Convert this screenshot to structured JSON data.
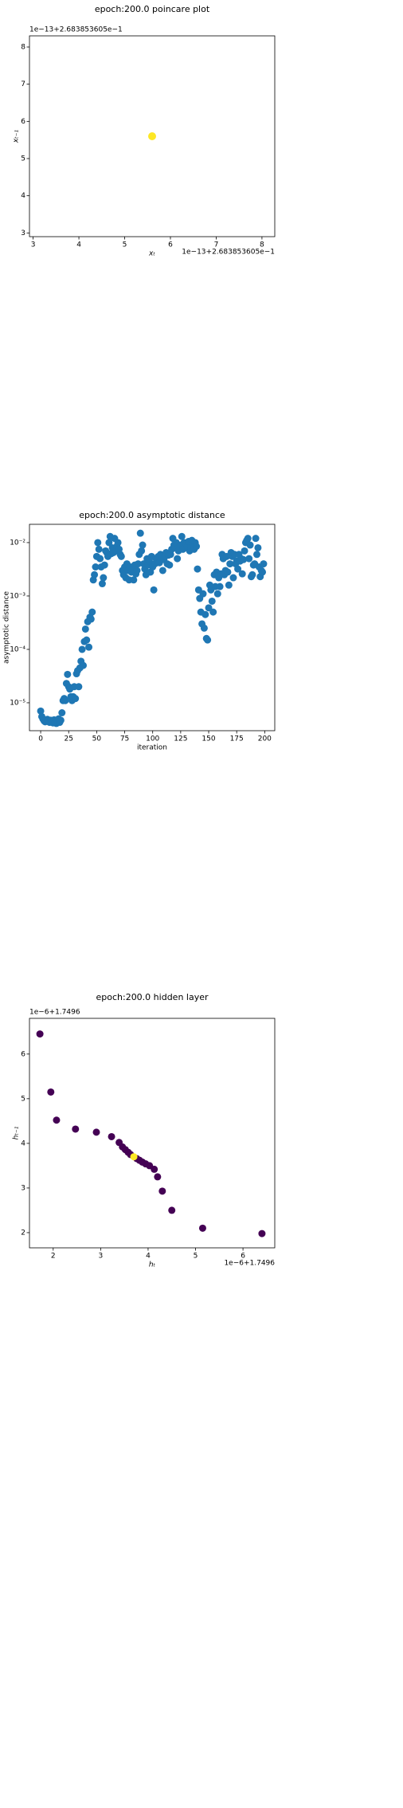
{
  "chart_data": [
    {
      "type": "scatter",
      "title": "epoch:200.0 poincare plot",
      "xlabel": "xₜ",
      "ylabel": "xₜ₋₁",
      "x_offset": "1e−13+2.683853605e−1",
      "y_offset": "1e−13+2.683853605e−1",
      "x": [
        5.6
      ],
      "y": [
        5.6
      ],
      "color": "#fde725",
      "xlim": [
        2.92,
        8.28
      ],
      "ylim": [
        2.9,
        8.3
      ],
      "xticks": [
        3,
        4,
        5,
        6,
        7,
        8
      ],
      "yticks": [
        3,
        4,
        5,
        6,
        7,
        8
      ]
    },
    {
      "type": "scatter",
      "title": "epoch:200.0 asymptotic distance",
      "xlabel": "iteration",
      "ylabel": "asymptotic distance",
      "yscale": "log",
      "color": "#1f77b4",
      "x": [
        0,
        1,
        2,
        3,
        4,
        5,
        6,
        7,
        8,
        9,
        10,
        11,
        12,
        13,
        14,
        15,
        16,
        17,
        18,
        19,
        20,
        21,
        22,
        23,
        24,
        25,
        26,
        27,
        28,
        29,
        30,
        31,
        32,
        33,
        34,
        35,
        36,
        37,
        38,
        39,
        40,
        41,
        42,
        43,
        44,
        45,
        46,
        47,
        48,
        49,
        50,
        51,
        52,
        53,
        54,
        55,
        56,
        57,
        58,
        59,
        60,
        61,
        62,
        63,
        64,
        65,
        66,
        67,
        68,
        69,
        70,
        71,
        72,
        73,
        74,
        75,
        76,
        77,
        78,
        79,
        80,
        81,
        82,
        83,
        84,
        85,
        86,
        87,
        88,
        89,
        90,
        91,
        92,
        93,
        94,
        95,
        96,
        97,
        98,
        99,
        100,
        101,
        102,
        103,
        104,
        105,
        106,
        107,
        108,
        109,
        110,
        111,
        112,
        113,
        114,
        115,
        116,
        117,
        118,
        119,
        120,
        121,
        122,
        123,
        124,
        125,
        126,
        127,
        128,
        129,
        130,
        131,
        132,
        133,
        134,
        135,
        136,
        137,
        138,
        139,
        140,
        141,
        142,
        143,
        144,
        145,
        146,
        147,
        148,
        149,
        150,
        151,
        152,
        153,
        154,
        155,
        156,
        157,
        158,
        159,
        160,
        161,
        162,
        163,
        164,
        165,
        166,
        167,
        168,
        169,
        170,
        171,
        172,
        173,
        174,
        175,
        176,
        177,
        178,
        179,
        180,
        181,
        182,
        183,
        184,
        185,
        186,
        187,
        188,
        189,
        190,
        191,
        192,
        193,
        194,
        195,
        196,
        197,
        198,
        199
      ],
      "y": [
        7e-06,
        5.5e-06,
        5e-06,
        4.6e-06,
        4.4e-06,
        4.8e-06,
        4.9e-06,
        4.6e-06,
        4.3e-06,
        4.7e-06,
        4.5e-06,
        4.2e-06,
        4.8e-06,
        4.4e-06,
        4.1e-06,
        4.6e-06,
        5e-06,
        4.3e-06,
        4.7e-06,
        6.5e-06,
        1.1e-05,
        1.2e-05,
        1.1e-05,
        2.3e-05,
        3.4e-05,
        2e-05,
        1.8e-05,
        1.3e-05,
        1.1e-05,
        1.3e-05,
        2e-05,
        1.2e-05,
        3.5e-05,
        4e-05,
        2e-05,
        4.5e-05,
        6e-05,
        0.0001,
        5e-05,
        0.00014,
        0.00024,
        0.00015,
        0.00033,
        0.00011,
        0.0004,
        0.00037,
        0.0005,
        0.002,
        0.0025,
        0.0035,
        0.0055,
        0.01,
        0.0075,
        0.005,
        0.0035,
        0.0017,
        0.0022,
        0.0038,
        0.007,
        0.0065,
        0.0055,
        0.01,
        0.013,
        0.0062,
        0.008,
        0.0065,
        0.012,
        0.007,
        0.0085,
        0.01,
        0.0075,
        0.006,
        0.0055,
        0.003,
        0.0025,
        0.0035,
        0.0022,
        0.004,
        0.003,
        0.002,
        0.0035,
        0.0028,
        0.0032,
        0.002,
        0.0038,
        0.0026,
        0.003,
        0.004,
        0.006,
        0.015,
        0.007,
        0.009,
        0.004,
        0.0032,
        0.0025,
        0.005,
        0.0038,
        0.0045,
        0.0028,
        0.0055,
        0.0035,
        0.0013,
        0.004,
        0.005,
        0.0045,
        0.0055,
        0.0042,
        0.006,
        0.005,
        0.003,
        0.0048,
        0.0055,
        0.0065,
        0.004,
        0.0058,
        0.0038,
        0.006,
        0.0075,
        0.012,
        0.009,
        0.008,
        0.01,
        0.005,
        0.007,
        0.0085,
        0.009,
        0.013,
        0.0075,
        0.01,
        0.008,
        0.0095,
        0.0085,
        0.0105,
        0.007,
        0.008,
        0.011,
        0.009,
        0.0075,
        0.01,
        0.0085,
        0.0032,
        0.0013,
        0.0009,
        0.0005,
        0.0003,
        0.0011,
        0.00025,
        0.00045,
        0.00016,
        0.00015,
        0.0006,
        0.0016,
        0.0013,
        0.0008,
        0.0005,
        0.0025,
        0.0015,
        0.0028,
        0.0011,
        0.0022,
        0.0015,
        0.0026,
        0.006,
        0.005,
        0.0025,
        0.003,
        0.0055,
        0.0028,
        0.0016,
        0.004,
        0.0065,
        0.0055,
        0.0022,
        0.006,
        0.004,
        0.0045,
        0.0032,
        0.006,
        0.0045,
        0.005,
        0.0026,
        0.0048,
        0.007,
        0.01,
        0.011,
        0.012,
        0.005,
        0.009,
        0.0023,
        0.0025,
        0.0038,
        0.004,
        0.012,
        0.006,
        0.008,
        0.0035,
        0.0023,
        0.003,
        0.0028,
        0.004
      ],
      "xlim": [
        -10,
        209
      ],
      "ylim": [
        3e-06,
        0.022
      ],
      "xticks": [
        0,
        25,
        50,
        75,
        100,
        125,
        150,
        175,
        200
      ],
      "yticks": [
        {
          "value": 1e-05,
          "label": "10⁻⁵"
        },
        {
          "value": 0.0001,
          "label": "10⁻⁴"
        },
        {
          "value": 0.001,
          "label": "10⁻³"
        },
        {
          "value": 0.01,
          "label": "10⁻²"
        }
      ]
    },
    {
      "type": "scatter",
      "title": "epoch:200.0 hidden layer",
      "xlabel": "hₜ",
      "ylabel": "hₜ₋₁",
      "x_offset": "1e−6+1.7496",
      "y_offset": "1e−6+1.7496",
      "x": [
        1.72,
        1.95,
        2.07,
        2.47,
        2.91,
        3.23,
        3.39,
        3.46,
        3.52,
        3.58,
        3.63,
        3.7,
        3.76,
        3.82,
        3.88,
        3.95,
        4.03,
        4.13,
        4.2,
        4.3,
        4.5,
        5.15,
        6.4
      ],
      "y": [
        6.45,
        5.15,
        4.52,
        4.32,
        4.25,
        4.15,
        4.02,
        3.92,
        3.86,
        3.8,
        3.75,
        3.7,
        3.66,
        3.62,
        3.58,
        3.54,
        3.5,
        3.42,
        3.25,
        2.93,
        2.5,
        2.1,
        1.98
      ],
      "colors": [
        "#440154",
        "#440154",
        "#440154",
        "#440154",
        "#440154",
        "#440154",
        "#440154",
        "#440154",
        "#440154",
        "#440154",
        "#440154",
        "#fde725",
        "#440154",
        "#440154",
        "#440154",
        "#440154",
        "#440154",
        "#440154",
        "#440154",
        "#440154",
        "#440154",
        "#440154",
        "#440154"
      ],
      "xlim": [
        1.5,
        6.67
      ],
      "ylim": [
        1.66,
        6.8
      ],
      "xticks": [
        2,
        3,
        4,
        5,
        6
      ],
      "yticks": [
        2,
        3,
        4,
        5,
        6
      ]
    }
  ]
}
